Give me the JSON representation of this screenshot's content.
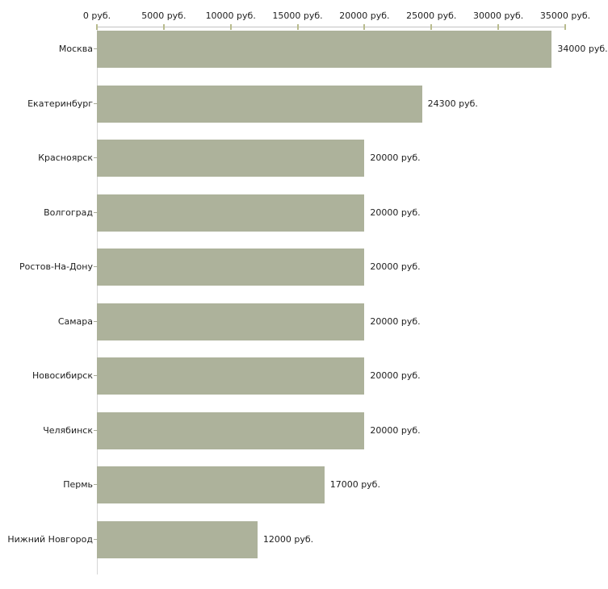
{
  "chart_data": {
    "type": "bar",
    "orientation": "horizontal",
    "categories": [
      "Москва",
      "Екатеринбург",
      "Красноярск",
      "Волгоград",
      "Ростов-На-Дону",
      "Самара",
      "Новосибирск",
      "Челябинск",
      "Пермь",
      "Нижний Новгород"
    ],
    "values": [
      34000,
      24300,
      20000,
      20000,
      20000,
      20000,
      20000,
      20000,
      17000,
      12000
    ],
    "value_labels": [
      "34000 руб.",
      "24300 руб.",
      "20000 руб.",
      "20000 руб.",
      "20000 руб.",
      "20000 руб.",
      "20000 руб.",
      "20000 руб.",
      "17000 руб.",
      "12000 руб."
    ],
    "x_axis": {
      "position": "top",
      "xlim": [
        0,
        35000
      ],
      "tick_values": [
        0,
        5000,
        10000,
        15000,
        20000,
        25000,
        30000,
        35000
      ],
      "tick_labels": [
        "0 руб.",
        "5000 руб.",
        "10000 руб.",
        "15000 руб.",
        "20000 руб.",
        "25000 руб.",
        "30000 руб.",
        "35000 руб."
      ]
    },
    "grid": false,
    "legend": false,
    "colors": {
      "bar": "#adb29b",
      "x_axis_line": "#c2c2c2",
      "x_tick_mark": "#b9bc8e",
      "y_axis_line": "#d6d6d6",
      "y_tick_mark": "#a8ab99",
      "text": "#1e1e1e",
      "background": "#ffffff"
    }
  }
}
